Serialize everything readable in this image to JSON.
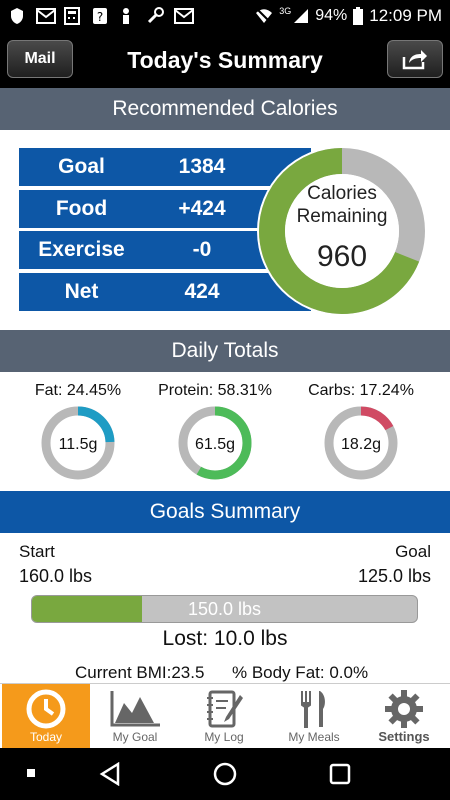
{
  "status_bar": {
    "battery": "94%",
    "time": "12:09 PM",
    "network": "3G"
  },
  "header": {
    "left_button": "Mail",
    "title": "Today's Summary"
  },
  "calories": {
    "section_title": "Recommended Calories",
    "rows": [
      {
        "label": "Goal",
        "value": "1384"
      },
      {
        "label": "Food",
        "value": "+424"
      },
      {
        "label": "Exercise",
        "value": "-0"
      },
      {
        "label": "Net",
        "value": "424"
      }
    ],
    "ring_label_1": "Calories",
    "ring_label_2": "Remaining",
    "ring_value": "960",
    "remaining_fraction": 0.69,
    "colors": {
      "remaining": "#79a83f",
      "used": "#b8b8b8"
    }
  },
  "daily_totals": {
    "section_title": "Daily Totals",
    "items": [
      {
        "title": "Fat: 24.45%",
        "value": "11.5g",
        "fraction": 0.2445,
        "color": "#1f9cc4"
      },
      {
        "title": "Protein: 58.31%",
        "value": "61.5g",
        "fraction": 0.5831,
        "color": "#4dbb59"
      },
      {
        "title": "Carbs: 17.24%",
        "value": "18.2g",
        "fraction": 0.1724,
        "color": "#d04a63"
      }
    ]
  },
  "goals_summary": {
    "section_title": "Goals Summary",
    "start_label": "Start",
    "start_value": "160.0 lbs",
    "goal_label": "Goal",
    "goal_value": "125.0 lbs",
    "current_value": "150.0 lbs",
    "progress_fraction": 0.286,
    "lost": "Lost: 10.0 lbs",
    "bmi": "Current BMI:23.5",
    "body_fat": "% Body Fat: 0.0%"
  },
  "tabs": [
    {
      "label": "Today",
      "icon": "clock-icon",
      "active": true
    },
    {
      "label": "My Goal",
      "icon": "chart-icon",
      "active": false
    },
    {
      "label": "My Log",
      "icon": "notebook-icon",
      "active": false
    },
    {
      "label": "My Meals",
      "icon": "fork-knife-icon",
      "active": false
    },
    {
      "label": "Settings",
      "icon": "gear-icon",
      "active": false
    }
  ]
}
